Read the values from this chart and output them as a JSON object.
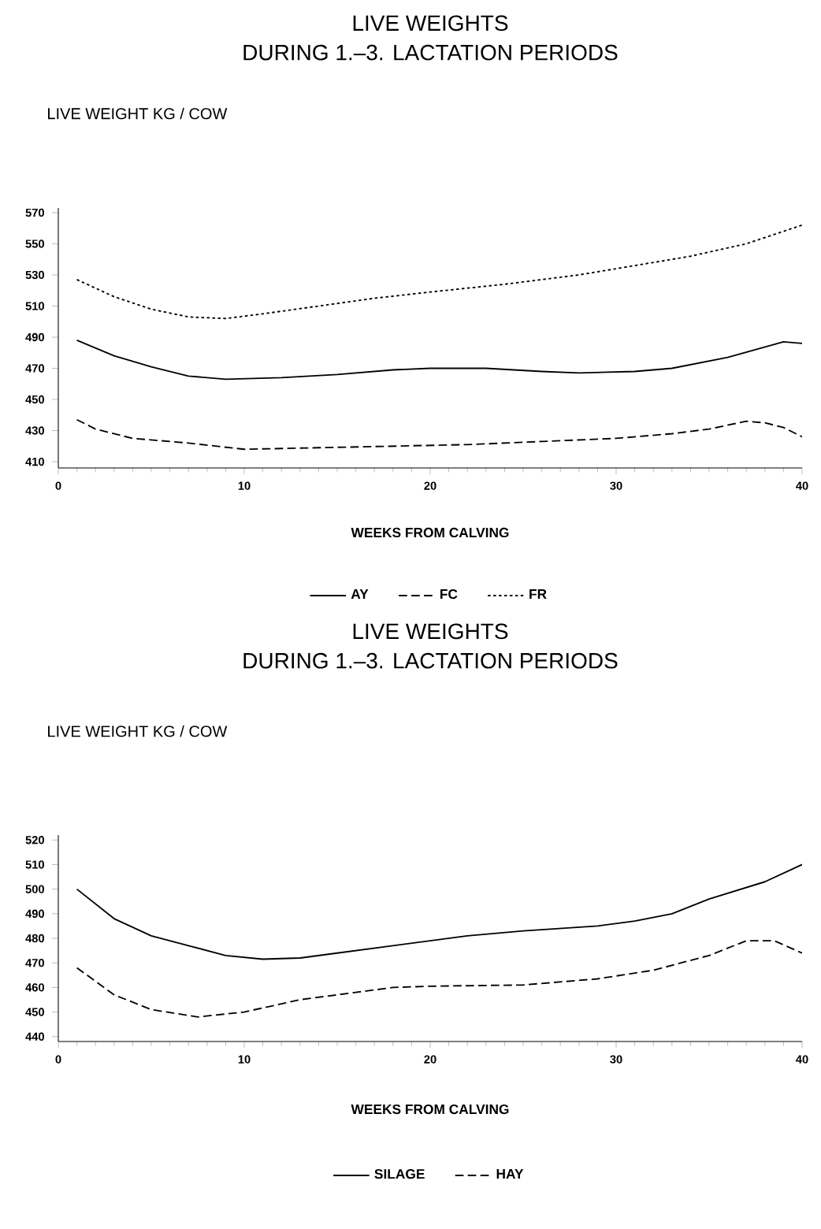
{
  "chart_data": [
    {
      "type": "line",
      "title": "LIVE WEIGHTS",
      "subtitle": "DURING 1.–3. LACTATION PERIODS",
      "ylabel": "LIVE WEIGHT KG / COW",
      "xlabel": "WEEKS FROM CALVING",
      "xlim": [
        0,
        40
      ],
      "xticks": [
        0,
        10,
        20,
        30,
        40
      ],
      "ylim": [
        406,
        573
      ],
      "yticks": [
        410,
        430,
        450,
        470,
        490,
        510,
        530,
        550,
        570
      ],
      "legend": "bottom",
      "marker": "none",
      "series": [
        {
          "name": "AY",
          "color": "#000000",
          "line_style": "solid",
          "x": [
            1,
            3,
            5,
            7,
            9,
            12,
            15,
            18,
            20,
            23,
            26,
            28,
            31,
            33,
            36,
            39,
            40
          ],
          "values": [
            488,
            478,
            471,
            465,
            463,
            464,
            466,
            469,
            470,
            470,
            468,
            467,
            468,
            470,
            477,
            487,
            486
          ]
        },
        {
          "name": "FC",
          "color": "#000000",
          "line_style": "dashed",
          "x": [
            1,
            2,
            4,
            7,
            10,
            14,
            18,
            22,
            26,
            30,
            33,
            35,
            37,
            38,
            39,
            40
          ],
          "values": [
            437,
            431,
            425,
            422,
            418,
            419,
            420,
            421,
            423,
            425,
            428,
            431,
            436,
            435,
            432,
            426
          ]
        },
        {
          "name": "FR",
          "color": "#000000",
          "line_style": "dotted",
          "x": [
            1,
            3,
            5,
            7,
            9,
            11,
            14,
            17,
            20,
            24,
            28,
            31,
            34,
            37,
            40
          ],
          "values": [
            527,
            516,
            508,
            503,
            502,
            505,
            510,
            515,
            519,
            524,
            530,
            536,
            542,
            550,
            562
          ]
        }
      ]
    },
    {
      "type": "line",
      "title": "LIVE WEIGHTS",
      "subtitle": "DURING 1.–3. LACTATION PERIODS",
      "ylabel": "LIVE WEIGHT KG / COW",
      "xlabel": "WEEKS FROM CALVING",
      "xlim": [
        0,
        40
      ],
      "xticks": [
        0,
        10,
        20,
        30,
        40
      ],
      "ylim": [
        438,
        522
      ],
      "yticks": [
        440,
        450,
        460,
        470,
        480,
        490,
        500,
        510,
        520
      ],
      "legend": "bottom",
      "marker": "none",
      "series": [
        {
          "name": "SILAGE",
          "color": "#000000",
          "line_style": "solid",
          "x": [
            1,
            3,
            5,
            7,
            9,
            11,
            13,
            15,
            18,
            20,
            22,
            25,
            29,
            31,
            33,
            35,
            38,
            40
          ],
          "values": [
            500,
            488,
            481,
            477,
            473,
            471.5,
            472,
            474,
            477,
            479,
            481,
            483,
            485,
            487,
            490,
            496,
            503,
            510
          ]
        },
        {
          "name": "HAY",
          "color": "#000000",
          "line_style": "dashed",
          "x": [
            1,
            3,
            5,
            7.5,
            10,
            13,
            16,
            18,
            20,
            25,
            29,
            32,
            35,
            37,
            38.5,
            40
          ],
          "values": [
            468,
            457,
            451,
            448,
            450,
            455,
            458,
            460,
            460.5,
            461,
            463.5,
            467,
            473,
            479,
            479,
            474
          ]
        }
      ]
    }
  ]
}
